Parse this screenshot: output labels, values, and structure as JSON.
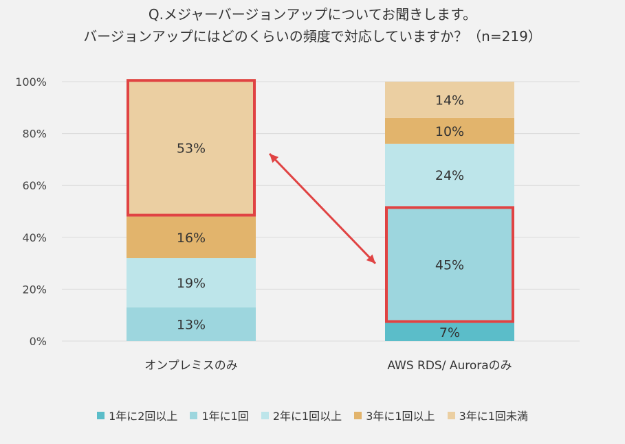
{
  "title_line1": "Q.メジャーバージョンアップについてお聞きします。",
  "title_line2": "バージョンアップにはどのくらいの頻度で対応していますか？（n=219）",
  "chart_data": {
    "type": "bar",
    "stacked": true,
    "categories": [
      "オンプレミスのみ",
      "AWS RDS/ Auroraのみ"
    ],
    "series": [
      {
        "name": "1年に2回以上",
        "color": "#5bbdc9",
        "values": [
          0,
          7
        ]
      },
      {
        "name": "1年に1回",
        "color": "#9dd6de",
        "values": [
          13,
          45
        ]
      },
      {
        "name": "2年に1回以上",
        "color": "#bde5ea",
        "values": [
          19,
          24
        ]
      },
      {
        "name": "3年に1回以上",
        "color": "#e2b46c",
        "values": [
          16,
          10
        ]
      },
      {
        "name": "3年に1回未満",
        "color": "#ebcfa2",
        "values": [
          53,
          14
        ]
      }
    ],
    "data_labels": [
      [
        "",
        "7%"
      ],
      [
        "13%",
        "45%"
      ],
      [
        "19%",
        "24%"
      ],
      [
        "16%",
        "10%"
      ],
      [
        "53%",
        "14%"
      ]
    ],
    "yticks": [
      "0%",
      "20%",
      "40%",
      "60%",
      "80%",
      "100%"
    ],
    "ylim": [
      0,
      100
    ],
    "legend_position": "bottom",
    "grid": true,
    "highlights": [
      {
        "category_index": 0,
        "series_index": 4
      },
      {
        "category_index": 1,
        "series_index": 1
      }
    ],
    "highlight_color": "#e04343"
  }
}
